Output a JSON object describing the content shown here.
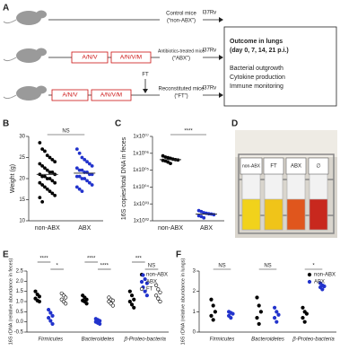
{
  "panel_labels": [
    "A",
    "B",
    "C",
    "D",
    "E",
    "F"
  ],
  "panel_a": {
    "infection": [
      "H37Rv",
      "H37Rv",
      "H37Rv"
    ],
    "groups": [
      [
        "Control mice",
        "(“non-ABX”)"
      ],
      [
        "Antibiotics-treated mice",
        "(“ABX”)"
      ],
      [
        "Reconstituted mice",
        "(“FT”)"
      ]
    ],
    "treatments": [
      [
        "A/N/V",
        "A/N/V/M"
      ],
      [
        "A/N/V",
        "A/N/V/M"
      ]
    ],
    "transfer": "FT",
    "outcome": {
      "title": "Outcome in lungs",
      "days": "(day 0, 7, 14, 21 p.i.)",
      "items": [
        "Bacterial outgrowth",
        "Cytokine production",
        "Immune monitoring"
      ]
    }
  },
  "panel_d": {
    "labels": [
      "non-ABX",
      "FT",
      "ABX",
      "∅"
    ]
  },
  "chart_data": [
    {
      "type": "dot",
      "ylabel": "Weight (g)",
      "categories": [
        "non-ABX",
        "ABX"
      ],
      "values": [
        [
          28.5,
          27,
          26.5,
          25.5,
          25,
          24.5,
          24,
          23.5,
          23,
          22.5,
          22,
          21.5,
          21.5,
          21,
          21,
          20.5,
          20.5,
          20,
          20,
          19.5,
          19,
          19,
          18.5,
          18,
          17.5,
          17,
          16.5,
          16,
          15.5,
          14.5
        ],
        [
          27,
          26,
          25,
          24.5,
          24,
          23.5,
          23,
          22.5,
          22,
          22,
          21.5,
          21.5,
          21,
          21,
          20.5,
          20.5,
          20,
          20,
          19.5,
          19,
          18.5,
          18,
          17.5,
          17
        ]
      ],
      "colors": [
        "#000000",
        "#2233cc"
      ],
      "means": [
        21,
        21.3
      ],
      "ylim": [
        10,
        30
      ],
      "yticks": [
        10,
        15,
        20,
        25,
        30
      ],
      "annotations": [
        "NS"
      ]
    },
    {
      "type": "dot",
      "log_scale": true,
      "ylabel": "16S copies/total DNA in feces",
      "categories": [
        "non-ABX",
        "ABX"
      ],
      "values": [
        [
          700000,
          600000,
          550000,
          500000,
          450000,
          420000,
          400000,
          380000,
          350000,
          300000,
          250000
        ],
        [
          400,
          350,
          300,
          280,
          260,
          250,
          230,
          200,
          180,
          150
        ]
      ],
      "colors": [
        "#000000",
        "#2233cc"
      ],
      "means": [
        420000,
        250
      ],
      "ylim": [
        100,
        10000000
      ],
      "yticks": [
        {
          "value": 100,
          "label": "1x10⁰²"
        },
        {
          "value": 1000,
          "label": "1x10⁰³"
        },
        {
          "value": 10000,
          "label": "1x10⁰⁴"
        },
        {
          "value": 100000,
          "label": "1x10⁰⁵"
        },
        {
          "value": 1000000,
          "label": "1x10⁰⁶"
        },
        {
          "value": 10000000,
          "label": "1x10⁰⁷"
        }
      ],
      "annotations": [
        "****"
      ]
    },
    {
      "type": "dot",
      "ylabel": "16S rDNA (relative abundance in feces)",
      "categories": [
        "Firmicutes",
        "Bacteroidetes",
        "β-Proteo-bacteria"
      ],
      "series": [
        {
          "name": "non-ABX",
          "color": "#000000",
          "marker": "filled",
          "values": [
            [
              1.5,
              1.35,
              1.25,
              1.15,
              1.05,
              1.0
            ],
            [
              1.3,
              1.2,
              1.1,
              1.05,
              1.0,
              0.9
            ],
            [
              1.5,
              1.3,
              1.1,
              1.0,
              0.85,
              0.7
            ]
          ]
        },
        {
          "name": "ABX",
          "color": "#2233cc",
          "marker": "filled",
          "values": [
            [
              0.6,
              0.45,
              0.3,
              0.2,
              0.05,
              -0.1
            ],
            [
              0.15,
              0.1,
              0.05,
              0.0,
              -0.05,
              -0.1
            ],
            [
              2.3,
              2.1,
              1.9,
              1.7,
              1.5,
              1.3
            ]
          ]
        },
        {
          "name": "FT",
          "color": "#000000",
          "marker": "open",
          "values": [
            [
              1.4,
              1.3,
              1.2,
              1.1,
              1.0,
              0.9
            ],
            [
              1.2,
              1.1,
              1.05,
              1.0,
              0.9,
              0.8
            ],
            [
              1.8,
              1.6,
              1.45,
              1.3,
              1.15,
              1.0
            ]
          ]
        }
      ],
      "ylim": [
        -0.5,
        2.5
      ],
      "yticks": [
        -0.5,
        {
          "value": 0,
          "label": "0.0"
        },
        0.5,
        {
          "value": 1,
          "label": "1.0"
        },
        1.5,
        {
          "value": 2,
          "label": "2.0"
        },
        2.5
      ],
      "legend": "upper right",
      "annotations": [
        "****",
        "*",
        "****",
        "****",
        "***",
        "NS"
      ]
    },
    {
      "type": "dot",
      "ylabel": "16S rDNA (relative abundance in lungs)",
      "categories": [
        "Firmicutes",
        "Bacteroidetes",
        "β-Proteo-bacteria"
      ],
      "series": [
        {
          "name": "non-ABX",
          "color": "#000000",
          "marker": "filled",
          "values": [
            [
              1.6,
              1.3,
              1.0,
              0.8,
              0.6
            ],
            [
              1.7,
              1.3,
              1.0,
              0.7,
              0.4
            ],
            [
              1.2,
              1.0,
              0.9,
              0.7,
              0.5
            ]
          ]
        },
        {
          "name": "ABX",
          "color": "#2233cc",
          "marker": "filled",
          "values": [
            [
              1.0,
              0.95,
              0.9,
              0.8,
              0.7
            ],
            [
              1.2,
              1.0,
              0.85,
              0.7,
              0.5
            ],
            [
              2.4,
              2.3,
              2.25,
              2.2,
              2.1
            ]
          ]
        }
      ],
      "ylim": [
        0,
        3
      ],
      "yticks": [
        0,
        1,
        2,
        3
      ],
      "legend": "upper right",
      "annotations": [
        "NS",
        "NS",
        "*"
      ]
    }
  ]
}
